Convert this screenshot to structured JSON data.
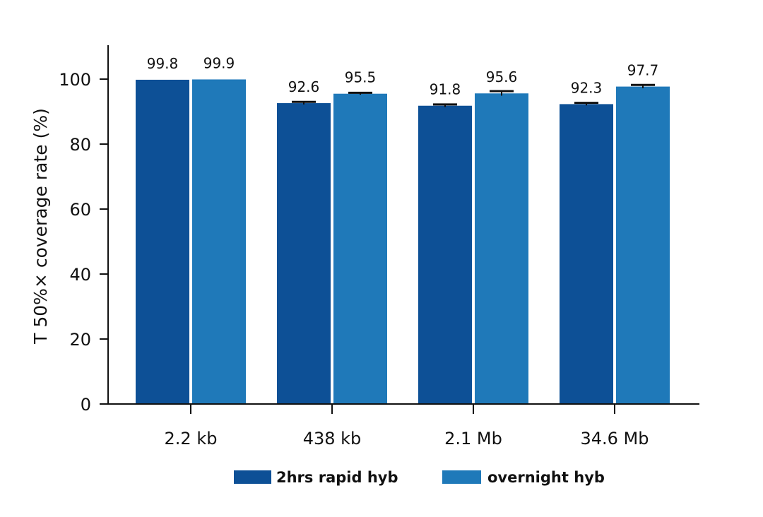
{
  "chart_data": {
    "type": "bar",
    "title": "",
    "xlabel": "",
    "ylabel": "T 50%× coverage rate (%)",
    "categories": [
      "2.2 kb",
      "438 kb",
      "2.1 Mb",
      "34.6 Mb"
    ],
    "ylim": [
      0,
      110
    ],
    "yticks": [
      0,
      20,
      40,
      60,
      80,
      100
    ],
    "grid": false,
    "legend_position": "bottom",
    "series": [
      {
        "name": "2hrs rapid hyb",
        "color": "#0D5096",
        "values": [
          99.8,
          92.6,
          91.8,
          92.3
        ],
        "labels": [
          "99.8",
          "92.6",
          "91.8",
          "92.3"
        ],
        "error": [
          0,
          0.4,
          0.4,
          0.4
        ]
      },
      {
        "name": "overnight hyb",
        "color": "#1F79B9",
        "values": [
          99.9,
          95.5,
          95.6,
          97.7
        ],
        "labels": [
          "99.9",
          "95.5",
          "95.6",
          "97.7"
        ],
        "error": [
          0,
          0.3,
          0.7,
          0.5
        ]
      }
    ]
  }
}
